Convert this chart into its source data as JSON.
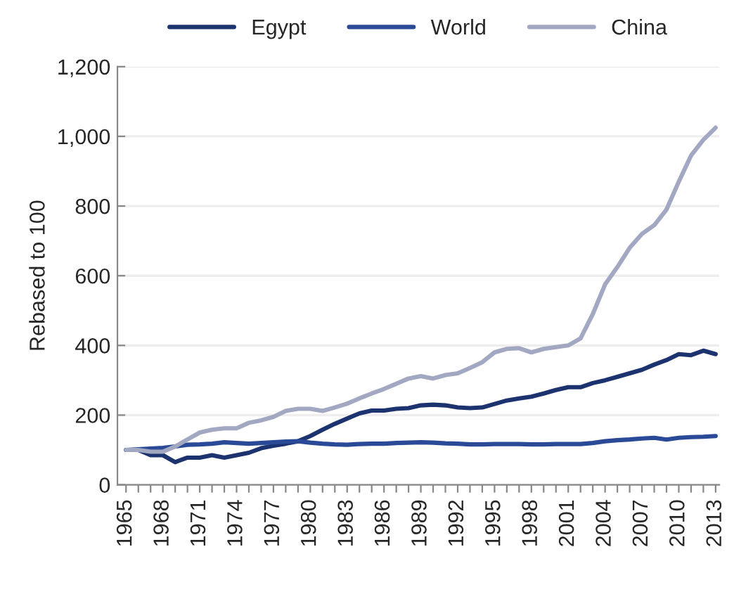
{
  "chart_data": {
    "type": "line",
    "ylabel": "Rebased to 100",
    "categories": [
      "1965",
      null,
      null,
      "1968",
      null,
      null,
      "1971",
      null,
      null,
      "1974",
      null,
      null,
      "1977",
      null,
      null,
      "1980",
      null,
      null,
      "1983",
      null,
      null,
      "1986",
      null,
      null,
      "1989",
      null,
      null,
      "1992",
      null,
      null,
      "1995",
      null,
      null,
      "1998",
      null,
      null,
      "2001",
      null,
      null,
      "2004",
      null,
      null,
      "2007",
      null,
      null,
      "2010",
      null,
      null,
      "2013"
    ],
    "series": [
      {
        "name": "Egypt",
        "color": "#1c3370",
        "values": [
          100,
          100,
          85,
          85,
          65,
          78,
          78,
          85,
          78,
          85,
          92,
          105,
          112,
          118,
          125,
          140,
          158,
          175,
          190,
          205,
          213,
          213,
          218,
          220,
          228,
          230,
          228,
          222,
          220,
          222,
          232,
          242,
          248,
          253,
          262,
          272,
          280,
          280,
          292,
          300,
          310,
          320,
          330,
          345,
          358,
          375,
          372,
          385,
          375
        ]
      },
      {
        "name": "World",
        "color": "#2a4a98",
        "values": [
          100,
          102,
          104,
          106,
          110,
          115,
          116,
          118,
          122,
          120,
          118,
          120,
          122,
          124,
          125,
          121,
          118,
          116,
          115,
          117,
          118,
          118,
          120,
          121,
          122,
          121,
          119,
          118,
          116,
          116,
          117,
          117,
          117,
          116,
          116,
          117,
          117,
          117,
          120,
          125,
          128,
          130,
          133,
          135,
          130,
          135,
          137,
          138,
          140
        ]
      },
      {
        "name": "China",
        "color": "#a2a7c2",
        "values": [
          100,
          100,
          95,
          95,
          110,
          130,
          150,
          158,
          162,
          162,
          178,
          185,
          195,
          212,
          218,
          218,
          212,
          222,
          233,
          248,
          262,
          275,
          290,
          305,
          312,
          305,
          315,
          320,
          335,
          352,
          380,
          390,
          392,
          380,
          390,
          395,
          400,
          420,
          490,
          575,
          625,
          680,
          720,
          745,
          790,
          870,
          945,
          990,
          1025
        ]
      }
    ],
    "ylim": [
      0,
      1200
    ],
    "yticks": [
      0,
      200,
      400,
      600,
      800,
      {
        "value": 1000,
        "label": "1,000"
      },
      {
        "value": 1200,
        "label": "1,200"
      }
    ],
    "grid": "y",
    "legend": "top",
    "marker": "none",
    "line_style": "solid"
  }
}
